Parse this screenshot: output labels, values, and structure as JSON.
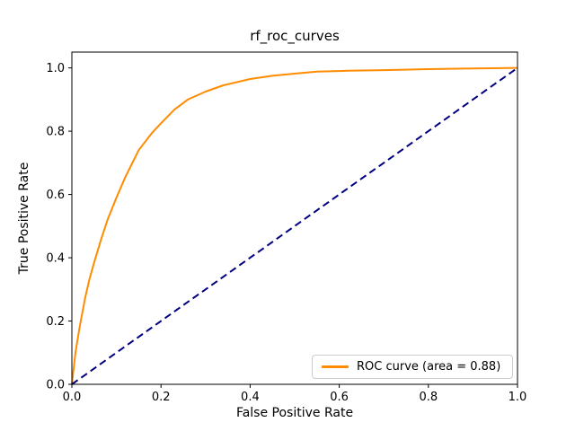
{
  "figure": {
    "title": "rf_roc_curves",
    "background_color": "#ffffff",
    "text_color": "#000000"
  },
  "legend": {
    "label": "ROC curve (area = 0.88)",
    "swatch_color": "#ff8c00",
    "position": "lower right"
  },
  "chart_data": {
    "type": "line",
    "title": "rf_roc_curves",
    "xlabel": "False Positive Rate",
    "ylabel": "True Positive Rate",
    "xlim": [
      0.0,
      1.0
    ],
    "ylim": [
      0.0,
      1.05
    ],
    "grid": false,
    "legend_position": "lower right",
    "x_ticks": [
      0.0,
      0.2,
      0.4,
      0.6,
      0.8,
      1.0
    ],
    "y_ticks": [
      0.0,
      0.2,
      0.4,
      0.6,
      0.8,
      1.0
    ],
    "x_tick_labels": [
      "0.0",
      "0.2",
      "0.4",
      "0.6",
      "0.8",
      "1.0"
    ],
    "y_tick_labels": [
      "0.0",
      "0.2",
      "0.4",
      "0.6",
      "0.8",
      "1.0"
    ],
    "auc": 0.88,
    "series": [
      {
        "name": "ROC curve (area = 0.88)",
        "color": "#ff8c00",
        "style": "solid",
        "line_width": 2,
        "in_legend": true,
        "points": [
          [
            0.0,
            0.0
          ],
          [
            0.004,
            0.05
          ],
          [
            0.008,
            0.1
          ],
          [
            0.015,
            0.16
          ],
          [
            0.02,
            0.2
          ],
          [
            0.03,
            0.275
          ],
          [
            0.04,
            0.335
          ],
          [
            0.05,
            0.385
          ],
          [
            0.065,
            0.455
          ],
          [
            0.08,
            0.52
          ],
          [
            0.1,
            0.59
          ],
          [
            0.12,
            0.655
          ],
          [
            0.15,
            0.74
          ],
          [
            0.18,
            0.795
          ],
          [
            0.2,
            0.825
          ],
          [
            0.23,
            0.868
          ],
          [
            0.26,
            0.9
          ],
          [
            0.3,
            0.925
          ],
          [
            0.34,
            0.945
          ],
          [
            0.4,
            0.965
          ],
          [
            0.45,
            0.975
          ],
          [
            0.5,
            0.982
          ],
          [
            0.55,
            0.988
          ],
          [
            0.62,
            0.991
          ],
          [
            0.7,
            0.993
          ],
          [
            0.8,
            0.996
          ],
          [
            0.9,
            0.998
          ],
          [
            1.0,
            1.0
          ]
        ]
      },
      {
        "name": "chance-line",
        "color": "#000080",
        "style": "dashed",
        "line_width": 2,
        "in_legend": false,
        "points": [
          [
            0.0,
            0.0
          ],
          [
            1.0,
            1.0
          ]
        ]
      }
    ]
  }
}
